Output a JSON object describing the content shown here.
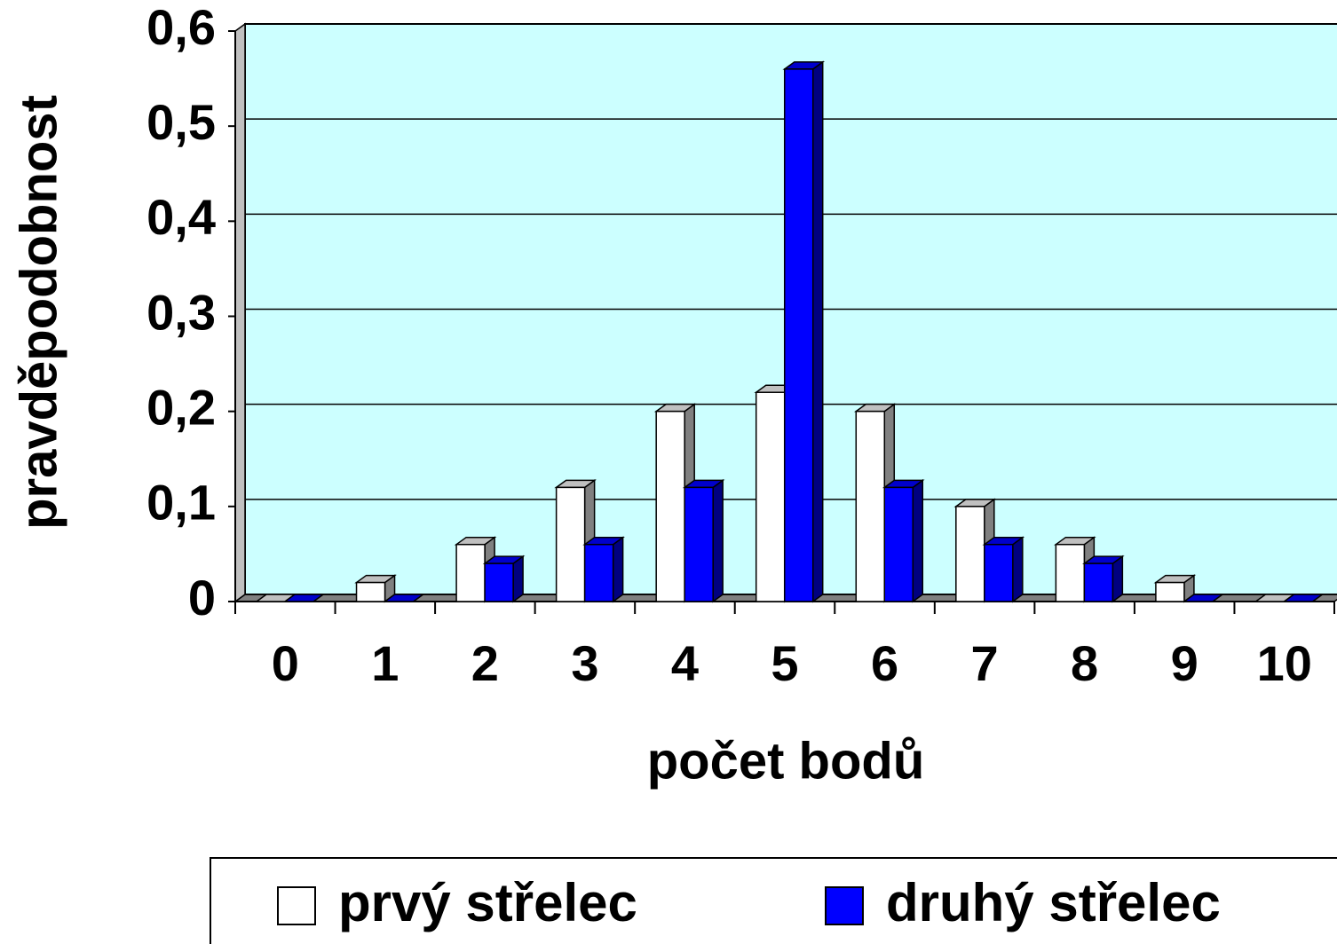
{
  "chart_data": {
    "type": "bar3d",
    "xlabel": "počet bodů",
    "ylabel": "pravděpodobnost",
    "categories": [
      "0",
      "1",
      "2",
      "3",
      "4",
      "5",
      "6",
      "7",
      "8",
      "9",
      "10"
    ],
    "series": [
      {
        "name": "prvý střelec",
        "color": "#ffffff",
        "values": [
          0,
          0.02,
          0.06,
          0.12,
          0.2,
          0.22,
          0.2,
          0.1,
          0.06,
          0.02,
          0
        ]
      },
      {
        "name": "druhý střelec",
        "color": "#0000ff",
        "values": [
          0,
          0,
          0.04,
          0.06,
          0.12,
          0.56,
          0.12,
          0.06,
          0.04,
          0,
          0
        ]
      }
    ],
    "ylim": [
      0,
      0.6
    ],
    "yticks": [
      0,
      {
        "value": 0.1,
        "label": "0,1"
      },
      {
        "value": 0.2,
        "label": "0,2"
      },
      {
        "value": 0.3,
        "label": "0,3"
      },
      {
        "value": 0.4,
        "label": "0,4"
      },
      {
        "value": 0.5,
        "label": "0,5"
      },
      {
        "value": 0.6,
        "label": "0,6"
      }
    ],
    "grid": true,
    "legend": "bottom"
  }
}
